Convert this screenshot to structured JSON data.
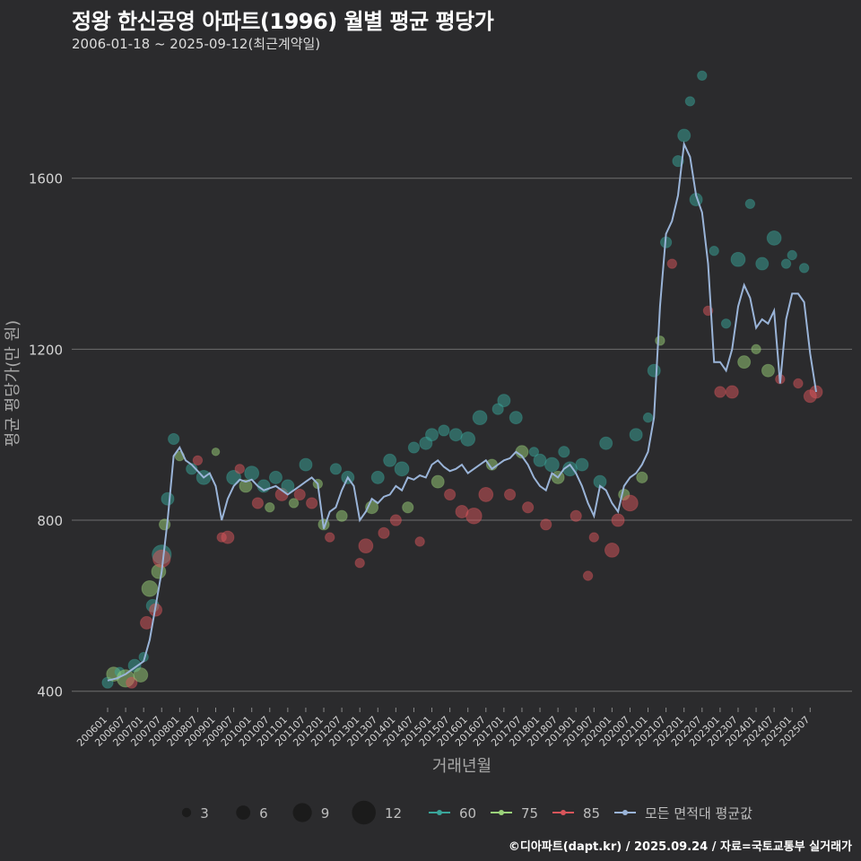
{
  "header": {
    "title": "정왕 한신공영 아파트(1996) 월별 평균 평당가",
    "subtitle": "2006-01-18 ~ 2025-09-12(최근계약일)"
  },
  "footer": {
    "credit": "©디아파트(dapt.kr) / 2025.09.24 / 자료=국토교통부 실거래가"
  },
  "colors": {
    "background": "#2b2b2d",
    "grid": "#6e6e6e",
    "s60": "#3aa59a",
    "s75": "#9bd27a",
    "s85": "#d9555b",
    "avg": "#9ab4d8"
  },
  "chart_data": {
    "type": "scatter",
    "xlabel": "거래년월",
    "ylabel": "평균 평당가(만 원)",
    "ylim": [
      370,
      1870
    ],
    "yticks": [
      400,
      800,
      1200,
      1600
    ],
    "x_range": [
      "2006-01",
      "2025-09"
    ],
    "xticks": [
      "200601",
      "200607",
      "200701",
      "200707",
      "200801",
      "200807",
      "200901",
      "200907",
      "201001",
      "201007",
      "201101",
      "201107",
      "201201",
      "201207",
      "201301",
      "201307",
      "201401",
      "201407",
      "201501",
      "201507",
      "201601",
      "201607",
      "201701",
      "201707",
      "201801",
      "201807",
      "201901",
      "201907",
      "202001",
      "202007",
      "202101",
      "202107",
      "202201",
      "202207",
      "202301",
      "202307",
      "202401",
      "202407",
      "202501",
      "202507"
    ],
    "size_legend": {
      "title": "",
      "values": [
        3,
        6,
        9,
        12
      ]
    },
    "series_legend": [
      {
        "name": "60",
        "key": "s60"
      },
      {
        "name": "75",
        "key": "s75"
      },
      {
        "name": "85",
        "key": "s85"
      },
      {
        "name": "모든 면적대 평균값",
        "key": "avg"
      }
    ],
    "avg_line": [
      [
        "2006-01",
        425
      ],
      [
        "2006-04",
        430
      ],
      [
        "2006-07",
        440
      ],
      [
        "2006-10",
        455
      ],
      [
        "2007-01",
        470
      ],
      [
        "2007-03",
        520
      ],
      [
        "2007-05",
        600
      ],
      [
        "2007-07",
        680
      ],
      [
        "2007-09",
        800
      ],
      [
        "2007-11",
        950
      ],
      [
        "2008-01",
        970
      ],
      [
        "2008-03",
        940
      ],
      [
        "2008-05",
        930
      ],
      [
        "2008-07",
        915
      ],
      [
        "2008-09",
        900
      ],
      [
        "2008-11",
        910
      ],
      [
        "2009-01",
        880
      ],
      [
        "2009-03",
        800
      ],
      [
        "2009-05",
        850
      ],
      [
        "2009-07",
        880
      ],
      [
        "2009-09",
        895
      ],
      [
        "2009-11",
        890
      ],
      [
        "2010-01",
        895
      ],
      [
        "2010-03",
        880
      ],
      [
        "2010-05",
        870
      ],
      [
        "2010-07",
        875
      ],
      [
        "2010-09",
        880
      ],
      [
        "2010-11",
        870
      ],
      [
        "2011-01",
        860
      ],
      [
        "2011-03",
        870
      ],
      [
        "2011-05",
        880
      ],
      [
        "2011-07",
        890
      ],
      [
        "2011-09",
        900
      ],
      [
        "2011-11",
        885
      ],
      [
        "2012-01",
        780
      ],
      [
        "2012-03",
        820
      ],
      [
        "2012-05",
        830
      ],
      [
        "2012-07",
        870
      ],
      [
        "2012-09",
        900
      ],
      [
        "2012-11",
        880
      ],
      [
        "2013-01",
        800
      ],
      [
        "2013-03",
        820
      ],
      [
        "2013-05",
        850
      ],
      [
        "2013-07",
        840
      ],
      [
        "2013-09",
        855
      ],
      [
        "2013-11",
        860
      ],
      [
        "2014-01",
        880
      ],
      [
        "2014-03",
        870
      ],
      [
        "2014-05",
        900
      ],
      [
        "2014-07",
        895
      ],
      [
        "2014-09",
        905
      ],
      [
        "2014-11",
        900
      ],
      [
        "2015-01",
        930
      ],
      [
        "2015-03",
        940
      ],
      [
        "2015-05",
        925
      ],
      [
        "2015-07",
        915
      ],
      [
        "2015-09",
        920
      ],
      [
        "2015-11",
        930
      ],
      [
        "2016-01",
        910
      ],
      [
        "2016-03",
        920
      ],
      [
        "2016-05",
        930
      ],
      [
        "2016-07",
        940
      ],
      [
        "2016-09",
        920
      ],
      [
        "2016-11",
        930
      ],
      [
        "2017-01",
        940
      ],
      [
        "2017-03",
        945
      ],
      [
        "2017-05",
        960
      ],
      [
        "2017-07",
        950
      ],
      [
        "2017-09",
        930
      ],
      [
        "2017-11",
        900
      ],
      [
        "2018-01",
        880
      ],
      [
        "2018-03",
        870
      ],
      [
        "2018-05",
        910
      ],
      [
        "2018-07",
        900
      ],
      [
        "2018-09",
        920
      ],
      [
        "2018-11",
        930
      ],
      [
        "2019-01",
        910
      ],
      [
        "2019-03",
        880
      ],
      [
        "2019-05",
        840
      ],
      [
        "2019-07",
        810
      ],
      [
        "2019-09",
        880
      ],
      [
        "2019-11",
        870
      ],
      [
        "2020-01",
        840
      ],
      [
        "2020-03",
        820
      ],
      [
        "2020-05",
        880
      ],
      [
        "2020-07",
        900
      ],
      [
        "2020-09",
        910
      ],
      [
        "2020-11",
        930
      ],
      [
        "2021-01",
        960
      ],
      [
        "2021-03",
        1040
      ],
      [
        "2021-05",
        1300
      ],
      [
        "2021-07",
        1470
      ],
      [
        "2021-09",
        1500
      ],
      [
        "2021-11",
        1560
      ],
      [
        "2022-01",
        1680
      ],
      [
        "2022-03",
        1650
      ],
      [
        "2022-05",
        1560
      ],
      [
        "2022-07",
        1520
      ],
      [
        "2022-09",
        1400
      ],
      [
        "2022-11",
        1170
      ],
      [
        "2023-01",
        1170
      ],
      [
        "2023-03",
        1150
      ],
      [
        "2023-05",
        1200
      ],
      [
        "2023-07",
        1300
      ],
      [
        "2023-09",
        1350
      ],
      [
        "2023-11",
        1320
      ],
      [
        "2024-01",
        1250
      ],
      [
        "2024-03",
        1270
      ],
      [
        "2024-05",
        1260
      ],
      [
        "2024-07",
        1290
      ],
      [
        "2024-09",
        1120
      ],
      [
        "2024-11",
        1270
      ],
      [
        "2025-01",
        1330
      ],
      [
        "2025-03",
        1330
      ],
      [
        "2025-05",
        1310
      ],
      [
        "2025-07",
        1190
      ],
      [
        "2025-09",
        1100
      ]
    ],
    "points": [
      {
        "s": "s60",
        "t": "2006-01",
        "v": 420,
        "n": 4
      },
      {
        "s": "s75",
        "t": "2006-03",
        "v": 440,
        "n": 6
      },
      {
        "s": "s60",
        "t": "2006-05",
        "v": 445,
        "n": 3
      },
      {
        "s": "s75",
        "t": "2006-07",
        "v": 430,
        "n": 8
      },
      {
        "s": "s85",
        "t": "2006-09",
        "v": 420,
        "n": 4
      },
      {
        "s": "s60",
        "t": "2006-10",
        "v": 460,
        "n": 5
      },
      {
        "s": "s75",
        "t": "2006-12",
        "v": 438,
        "n": 6
      },
      {
        "s": "s60",
        "t": "2007-01",
        "v": 480,
        "n": 3
      },
      {
        "s": "s85",
        "t": "2007-02",
        "v": 560,
        "n": 5
      },
      {
        "s": "s75",
        "t": "2007-03",
        "v": 640,
        "n": 7
      },
      {
        "s": "s60",
        "t": "2007-04",
        "v": 600,
        "n": 5
      },
      {
        "s": "s85",
        "t": "2007-05",
        "v": 590,
        "n": 5
      },
      {
        "s": "s75",
        "t": "2007-06",
        "v": 680,
        "n": 6
      },
      {
        "s": "s60",
        "t": "2007-07",
        "v": 720,
        "n": 9
      },
      {
        "s": "s85",
        "t": "2007-07",
        "v": 710,
        "n": 8
      },
      {
        "s": "s75",
        "t": "2007-08",
        "v": 790,
        "n": 4
      },
      {
        "s": "s60",
        "t": "2007-09",
        "v": 850,
        "n": 5
      },
      {
        "s": "s60",
        "t": "2007-11",
        "v": 990,
        "n": 4
      },
      {
        "s": "s75",
        "t": "2008-01",
        "v": 950,
        "n": 3
      },
      {
        "s": "s60",
        "t": "2008-05",
        "v": 920,
        "n": 4
      },
      {
        "s": "s85",
        "t": "2008-07",
        "v": 940,
        "n": 3
      },
      {
        "s": "s60",
        "t": "2008-09",
        "v": 900,
        "n": 6
      },
      {
        "s": "s75",
        "t": "2009-01",
        "v": 960,
        "n": 2
      },
      {
        "s": "s85",
        "t": "2009-03",
        "v": 760,
        "n": 3
      },
      {
        "s": "s85",
        "t": "2009-05",
        "v": 760,
        "n": 5
      },
      {
        "s": "s60",
        "t": "2009-07",
        "v": 900,
        "n": 6
      },
      {
        "s": "s85",
        "t": "2009-09",
        "v": 920,
        "n": 3
      },
      {
        "s": "s75",
        "t": "2009-11",
        "v": 880,
        "n": 5
      },
      {
        "s": "s60",
        "t": "2010-01",
        "v": 910,
        "n": 6
      },
      {
        "s": "s85",
        "t": "2010-03",
        "v": 840,
        "n": 4
      },
      {
        "s": "s60",
        "t": "2010-05",
        "v": 880,
        "n": 5
      },
      {
        "s": "s75",
        "t": "2010-07",
        "v": 830,
        "n": 3
      },
      {
        "s": "s60",
        "t": "2010-09",
        "v": 900,
        "n": 5
      },
      {
        "s": "s85",
        "t": "2010-11",
        "v": 860,
        "n": 5
      },
      {
        "s": "s60",
        "t": "2011-01",
        "v": 880,
        "n": 5
      },
      {
        "s": "s75",
        "t": "2011-03",
        "v": 840,
        "n": 3
      },
      {
        "s": "s85",
        "t": "2011-05",
        "v": 860,
        "n": 4
      },
      {
        "s": "s60",
        "t": "2011-07",
        "v": 930,
        "n": 5
      },
      {
        "s": "s85",
        "t": "2011-09",
        "v": 840,
        "n": 4
      },
      {
        "s": "s75",
        "t": "2011-11",
        "v": 885,
        "n": 3
      },
      {
        "s": "s75",
        "t": "2012-01",
        "v": 790,
        "n": 4
      },
      {
        "s": "s85",
        "t": "2012-03",
        "v": 760,
        "n": 3
      },
      {
        "s": "s60",
        "t": "2012-05",
        "v": 920,
        "n": 4
      },
      {
        "s": "s75",
        "t": "2012-07",
        "v": 810,
        "n": 4
      },
      {
        "s": "s60",
        "t": "2012-09",
        "v": 900,
        "n": 5
      },
      {
        "s": "s85",
        "t": "2013-01",
        "v": 700,
        "n": 3
      },
      {
        "s": "s85",
        "t": "2013-03",
        "v": 740,
        "n": 6
      },
      {
        "s": "s75",
        "t": "2013-05",
        "v": 830,
        "n": 5
      },
      {
        "s": "s60",
        "t": "2013-07",
        "v": 900,
        "n": 5
      },
      {
        "s": "s85",
        "t": "2013-09",
        "v": 770,
        "n": 4
      },
      {
        "s": "s60",
        "t": "2013-11",
        "v": 940,
        "n": 5
      },
      {
        "s": "s85",
        "t": "2014-01",
        "v": 800,
        "n": 4
      },
      {
        "s": "s60",
        "t": "2014-03",
        "v": 920,
        "n": 6
      },
      {
        "s": "s75",
        "t": "2014-05",
        "v": 830,
        "n": 4
      },
      {
        "s": "s60",
        "t": "2014-07",
        "v": 970,
        "n": 4
      },
      {
        "s": "s85",
        "t": "2014-09",
        "v": 750,
        "n": 3
      },
      {
        "s": "s60",
        "t": "2014-11",
        "v": 980,
        "n": 5
      },
      {
        "s": "s60",
        "t": "2015-01",
        "v": 1000,
        "n": 5
      },
      {
        "s": "s75",
        "t": "2015-03",
        "v": 890,
        "n": 5
      },
      {
        "s": "s60",
        "t": "2015-05",
        "v": 1010,
        "n": 4
      },
      {
        "s": "s85",
        "t": "2015-07",
        "v": 860,
        "n": 4
      },
      {
        "s": "s60",
        "t": "2015-09",
        "v": 1000,
        "n": 5
      },
      {
        "s": "s85",
        "t": "2015-11",
        "v": 820,
        "n": 5
      },
      {
        "s": "s60",
        "t": "2016-01",
        "v": 990,
        "n": 6
      },
      {
        "s": "s85",
        "t": "2016-03",
        "v": 810,
        "n": 7
      },
      {
        "s": "s60",
        "t": "2016-05",
        "v": 1040,
        "n": 6
      },
      {
        "s": "s85",
        "t": "2016-07",
        "v": 860,
        "n": 6
      },
      {
        "s": "s75",
        "t": "2016-09",
        "v": 930,
        "n": 4
      },
      {
        "s": "s60",
        "t": "2016-11",
        "v": 1060,
        "n": 4
      },
      {
        "s": "s60",
        "t": "2017-01",
        "v": 1080,
        "n": 5
      },
      {
        "s": "s85",
        "t": "2017-03",
        "v": 860,
        "n": 4
      },
      {
        "s": "s60",
        "t": "2017-05",
        "v": 1040,
        "n": 5
      },
      {
        "s": "s75",
        "t": "2017-07",
        "v": 960,
        "n": 5
      },
      {
        "s": "s85",
        "t": "2017-09",
        "v": 830,
        "n": 4
      },
      {
        "s": "s60",
        "t": "2017-11",
        "v": 960,
        "n": 3
      },
      {
        "s": "s60",
        "t": "2018-01",
        "v": 940,
        "n": 5
      },
      {
        "s": "s85",
        "t": "2018-03",
        "v": 790,
        "n": 4
      },
      {
        "s": "s60",
        "t": "2018-05",
        "v": 930,
        "n": 6
      },
      {
        "s": "s75",
        "t": "2018-07",
        "v": 900,
        "n": 5
      },
      {
        "s": "s60",
        "t": "2018-09",
        "v": 960,
        "n": 4
      },
      {
        "s": "s60",
        "t": "2018-11",
        "v": 920,
        "n": 6
      },
      {
        "s": "s85",
        "t": "2019-01",
        "v": 810,
        "n": 4
      },
      {
        "s": "s60",
        "t": "2019-03",
        "v": 930,
        "n": 5
      },
      {
        "s": "s85",
        "t": "2019-05",
        "v": 670,
        "n": 3
      },
      {
        "s": "s85",
        "t": "2019-07",
        "v": 760,
        "n": 3
      },
      {
        "s": "s60",
        "t": "2019-09",
        "v": 890,
        "n": 5
      },
      {
        "s": "s60",
        "t": "2019-11",
        "v": 980,
        "n": 5
      },
      {
        "s": "s85",
        "t": "2020-01",
        "v": 730,
        "n": 6
      },
      {
        "s": "s85",
        "t": "2020-03",
        "v": 800,
        "n": 5
      },
      {
        "s": "s75",
        "t": "2020-05",
        "v": 860,
        "n": 4
      },
      {
        "s": "s85",
        "t": "2020-07",
        "v": 840,
        "n": 7
      },
      {
        "s": "s60",
        "t": "2020-09",
        "v": 1000,
        "n": 5
      },
      {
        "s": "s75",
        "t": "2020-11",
        "v": 900,
        "n": 4
      },
      {
        "s": "s60",
        "t": "2021-01",
        "v": 1040,
        "n": 3
      },
      {
        "s": "s60",
        "t": "2021-03",
        "v": 1150,
        "n": 5
      },
      {
        "s": "s75",
        "t": "2021-05",
        "v": 1220,
        "n": 3
      },
      {
        "s": "s60",
        "t": "2021-07",
        "v": 1450,
        "n": 4
      },
      {
        "s": "s85",
        "t": "2021-09",
        "v": 1400,
        "n": 3
      },
      {
        "s": "s60",
        "t": "2021-11",
        "v": 1640,
        "n": 4
      },
      {
        "s": "s60",
        "t": "2022-01",
        "v": 1700,
        "n": 5
      },
      {
        "s": "s60",
        "t": "2022-03",
        "v": 1780,
        "n": 3
      },
      {
        "s": "s60",
        "t": "2022-05",
        "v": 1550,
        "n": 5
      },
      {
        "s": "s60",
        "t": "2022-07",
        "v": 1840,
        "n": 3
      },
      {
        "s": "s85",
        "t": "2022-09",
        "v": 1290,
        "n": 3
      },
      {
        "s": "s60",
        "t": "2022-11",
        "v": 1430,
        "n": 3
      },
      {
        "s": "s85",
        "t": "2023-01",
        "v": 1100,
        "n": 4
      },
      {
        "s": "s60",
        "t": "2023-03",
        "v": 1260,
        "n": 3
      },
      {
        "s": "s85",
        "t": "2023-05",
        "v": 1100,
        "n": 5
      },
      {
        "s": "s60",
        "t": "2023-07",
        "v": 1410,
        "n": 6
      },
      {
        "s": "s75",
        "t": "2023-09",
        "v": 1170,
        "n": 5
      },
      {
        "s": "s60",
        "t": "2023-11",
        "v": 1540,
        "n": 3
      },
      {
        "s": "s75",
        "t": "2024-01",
        "v": 1200,
        "n": 3
      },
      {
        "s": "s60",
        "t": "2024-03",
        "v": 1400,
        "n": 5
      },
      {
        "s": "s75",
        "t": "2024-05",
        "v": 1150,
        "n": 5
      },
      {
        "s": "s60",
        "t": "2024-07",
        "v": 1460,
        "n": 6
      },
      {
        "s": "s85",
        "t": "2024-09",
        "v": 1130,
        "n": 3
      },
      {
        "s": "s60",
        "t": "2024-11",
        "v": 1400,
        "n": 3
      },
      {
        "s": "s60",
        "t": "2025-01",
        "v": 1420,
        "n": 3
      },
      {
        "s": "s85",
        "t": "2025-03",
        "v": 1120,
        "n": 3
      },
      {
        "s": "s60",
        "t": "2025-05",
        "v": 1390,
        "n": 3
      },
      {
        "s": "s85",
        "t": "2025-07",
        "v": 1090,
        "n": 5
      },
      {
        "s": "s85",
        "t": "2025-09",
        "v": 1100,
        "n": 5
      }
    ]
  }
}
